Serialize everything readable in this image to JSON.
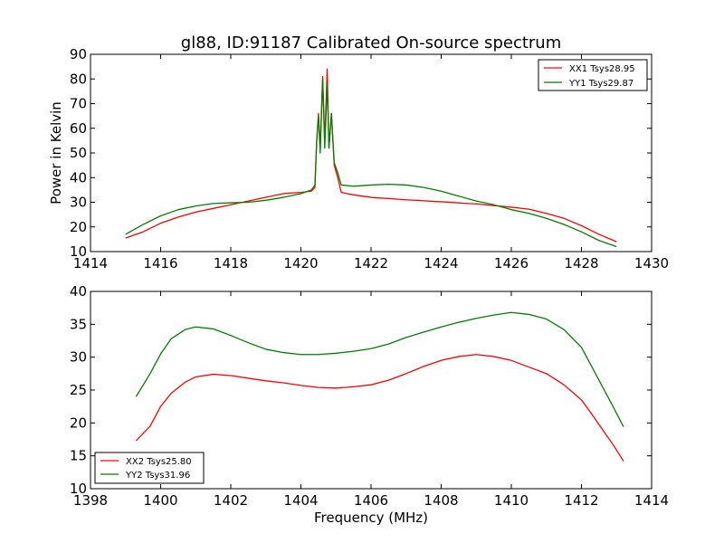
{
  "title": "gl88, ID:91187 Calibrated On-source spectrum",
  "colors": {
    "xx": "#ff0000",
    "yy": "#008000"
  },
  "chart_data": [
    {
      "type": "line",
      "xlim": [
        1414,
        1430
      ],
      "ylim": [
        10,
        90
      ],
      "xticks": [
        "1414",
        "1416",
        "1418",
        "1420",
        "1422",
        "1424",
        "1426",
        "1428",
        "1430"
      ],
      "yticks": [
        "10",
        "20",
        "30",
        "40",
        "50",
        "60",
        "70",
        "80",
        "90"
      ],
      "xlabel": "",
      "ylabel": "Power in Kelvin",
      "legend_position": "top-right",
      "series": [
        {
          "name": "XX1 Tsys28.95",
          "color": "#ff0000",
          "points": [
            [
              1415.0,
              15.5
            ],
            [
              1415.5,
              18.0
            ],
            [
              1416.0,
              21.5
            ],
            [
              1416.5,
              24.0
            ],
            [
              1417.0,
              26.0
            ],
            [
              1417.5,
              27.5
            ],
            [
              1418.0,
              29.0
            ],
            [
              1418.5,
              30.5
            ],
            [
              1419.0,
              32.0
            ],
            [
              1419.5,
              33.5
            ],
            [
              1420.0,
              34.0
            ],
            [
              1420.3,
              34.5
            ],
            [
              1420.4,
              36.0
            ],
            [
              1420.45,
              55.0
            ],
            [
              1420.5,
              66.0
            ],
            [
              1420.55,
              52.0
            ],
            [
              1420.62,
              81.0
            ],
            [
              1420.68,
              55.0
            ],
            [
              1420.75,
              84.0
            ],
            [
              1420.8,
              52.0
            ],
            [
              1420.87,
              66.0
            ],
            [
              1420.95,
              45.0
            ],
            [
              1421.05,
              40.0
            ],
            [
              1421.15,
              34.0
            ],
            [
              1421.5,
              33.0
            ],
            [
              1422.0,
              32.0
            ],
            [
              1423.0,
              31.0
            ],
            [
              1424.0,
              30.2
            ],
            [
              1425.0,
              29.3
            ],
            [
              1426.0,
              28.0
            ],
            [
              1426.5,
              27.2
            ],
            [
              1427.0,
              25.5
            ],
            [
              1427.5,
              23.5
            ],
            [
              1428.0,
              20.5
            ],
            [
              1428.5,
              17.0
            ],
            [
              1429.0,
              14.0
            ]
          ]
        },
        {
          "name": "YY1 Tsys29.87",
          "color": "#008000",
          "points": [
            [
              1415.0,
              17.0
            ],
            [
              1415.5,
              21.0
            ],
            [
              1416.0,
              24.5
            ],
            [
              1416.5,
              27.0
            ],
            [
              1417.0,
              28.5
            ],
            [
              1417.5,
              29.5
            ],
            [
              1418.0,
              29.8
            ],
            [
              1418.5,
              30.0
            ],
            [
              1419.0,
              30.8
            ],
            [
              1419.5,
              32.0
            ],
            [
              1420.0,
              33.5
            ],
            [
              1420.3,
              35.0
            ],
            [
              1420.4,
              37.0
            ],
            [
              1420.45,
              55.0
            ],
            [
              1420.5,
              65.0
            ],
            [
              1420.55,
              50.0
            ],
            [
              1420.62,
              80.0
            ],
            [
              1420.68,
              52.0
            ],
            [
              1420.75,
              78.0
            ],
            [
              1420.8,
              52.0
            ],
            [
              1420.87,
              66.0
            ],
            [
              1420.95,
              46.0
            ],
            [
              1421.05,
              42.0
            ],
            [
              1421.15,
              37.0
            ],
            [
              1421.5,
              36.5
            ],
            [
              1422.0,
              37.0
            ],
            [
              1422.5,
              37.3
            ],
            [
              1423.0,
              37.0
            ],
            [
              1423.5,
              36.0
            ],
            [
              1424.0,
              34.5
            ],
            [
              1424.5,
              32.5
            ],
            [
              1425.0,
              30.5
            ],
            [
              1425.5,
              29.0
            ],
            [
              1426.0,
              27.0
            ],
            [
              1426.5,
              25.5
            ],
            [
              1427.0,
              23.5
            ],
            [
              1427.5,
              21.0
            ],
            [
              1428.0,
              18.0
            ],
            [
              1428.5,
              14.5
            ],
            [
              1429.0,
              12.0
            ]
          ]
        }
      ]
    },
    {
      "type": "line",
      "xlim": [
        1398,
        1414
      ],
      "ylim": [
        10,
        40
      ],
      "xticks": [
        "1398",
        "1400",
        "1402",
        "1404",
        "1406",
        "1408",
        "1410",
        "1412",
        "1414"
      ],
      "yticks": [
        "10",
        "15",
        "20",
        "25",
        "30",
        "35",
        "40"
      ],
      "xlabel": "Frequency (MHz)",
      "ylabel": "",
      "legend_position": "lower-left",
      "series": [
        {
          "name": "XX2 Tsys25.80",
          "color": "#ff0000",
          "points": [
            [
              1399.3,
              17.3
            ],
            [
              1399.7,
              19.5
            ],
            [
              1400.0,
              22.5
            ],
            [
              1400.3,
              24.5
            ],
            [
              1400.7,
              26.2
            ],
            [
              1401.0,
              27.0
            ],
            [
              1401.5,
              27.4
            ],
            [
              1402.0,
              27.2
            ],
            [
              1402.5,
              26.8
            ],
            [
              1403.0,
              26.4
            ],
            [
              1403.5,
              26.1
            ],
            [
              1404.0,
              25.7
            ],
            [
              1404.5,
              25.4
            ],
            [
              1405.0,
              25.3
            ],
            [
              1405.5,
              25.5
            ],
            [
              1406.0,
              25.8
            ],
            [
              1406.5,
              26.5
            ],
            [
              1407.0,
              27.5
            ],
            [
              1407.5,
              28.6
            ],
            [
              1408.0,
              29.5
            ],
            [
              1408.5,
              30.1
            ],
            [
              1409.0,
              30.4
            ],
            [
              1409.5,
              30.1
            ],
            [
              1410.0,
              29.5
            ],
            [
              1410.5,
              28.5
            ],
            [
              1411.0,
              27.5
            ],
            [
              1411.5,
              25.8
            ],
            [
              1412.0,
              23.5
            ],
            [
              1412.3,
              21.3
            ],
            [
              1412.6,
              19.0
            ],
            [
              1412.9,
              16.7
            ],
            [
              1413.2,
              14.2
            ]
          ]
        },
        {
          "name": "YY2 Tsys31.96",
          "color": "#008000",
          "points": [
            [
              1399.3,
              24.0
            ],
            [
              1399.7,
              27.5
            ],
            [
              1400.0,
              30.5
            ],
            [
              1400.3,
              32.8
            ],
            [
              1400.7,
              34.2
            ],
            [
              1401.0,
              34.6
            ],
            [
              1401.5,
              34.3
            ],
            [
              1402.0,
              33.3
            ],
            [
              1402.5,
              32.2
            ],
            [
              1403.0,
              31.2
            ],
            [
              1403.5,
              30.7
            ],
            [
              1404.0,
              30.4
            ],
            [
              1404.5,
              30.4
            ],
            [
              1405.0,
              30.6
            ],
            [
              1405.5,
              30.9
            ],
            [
              1406.0,
              31.3
            ],
            [
              1406.5,
              32.0
            ],
            [
              1407.0,
              33.0
            ],
            [
              1407.5,
              33.8
            ],
            [
              1408.0,
              34.6
            ],
            [
              1408.5,
              35.3
            ],
            [
              1409.0,
              35.9
            ],
            [
              1409.5,
              36.4
            ],
            [
              1410.0,
              36.8
            ],
            [
              1410.5,
              36.5
            ],
            [
              1411.0,
              35.8
            ],
            [
              1411.5,
              34.2
            ],
            [
              1412.0,
              31.5
            ],
            [
              1412.3,
              28.5
            ],
            [
              1412.6,
              25.5
            ],
            [
              1412.9,
              22.5
            ],
            [
              1413.2,
              19.4
            ]
          ]
        }
      ]
    }
  ]
}
